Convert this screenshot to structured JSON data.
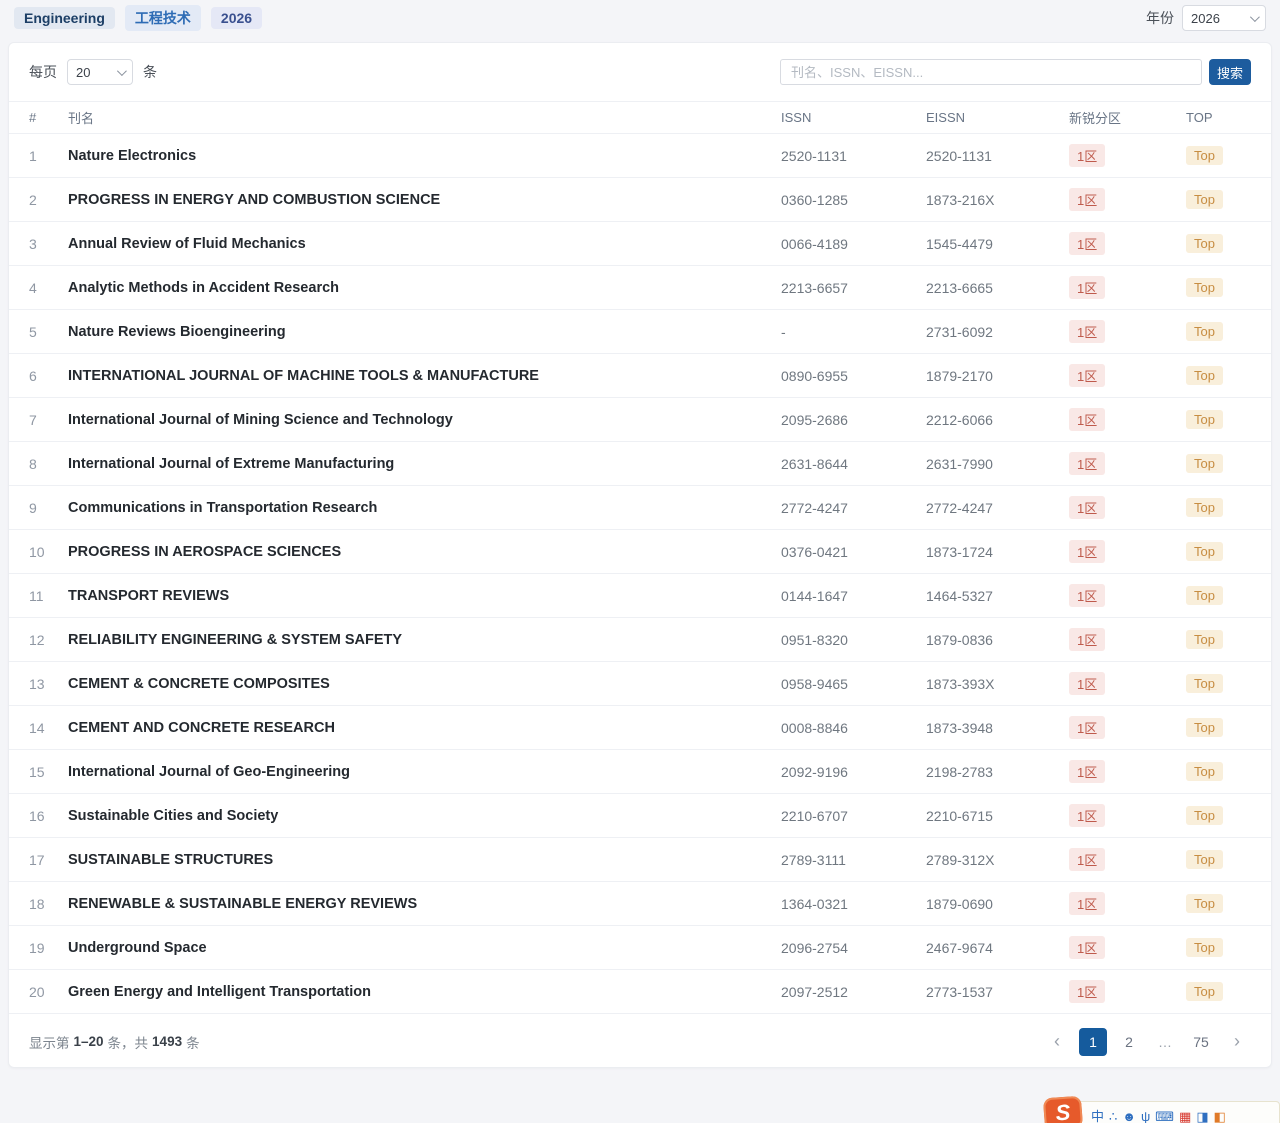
{
  "topbar": {
    "tags": [
      {
        "label": "Engineering"
      },
      {
        "label": "工程技术"
      },
      {
        "label": "2026"
      }
    ],
    "year_label": "年份",
    "year_value": "2026"
  },
  "toolbar": {
    "per_page_prefix": "每页",
    "per_page_value": "20",
    "per_page_suffix": "条",
    "search_placeholder": "刊名、ISSN、EISSN...",
    "search_button": "搜索"
  },
  "table": {
    "columns": {
      "num": "#",
      "name": "刊名",
      "issn": "ISSN",
      "eissn": "EISSN",
      "zone": "新锐分区",
      "top": "TOP"
    },
    "rows": [
      {
        "num": "1",
        "name": "Nature Electronics",
        "issn": "2520-1131",
        "eissn": "2520-1131",
        "zone": "1区",
        "top": "Top"
      },
      {
        "num": "2",
        "name": "PROGRESS IN ENERGY AND COMBUSTION SCIENCE",
        "issn": "0360-1285",
        "eissn": "1873-216X",
        "zone": "1区",
        "top": "Top"
      },
      {
        "num": "3",
        "name": "Annual Review of Fluid Mechanics",
        "issn": "0066-4189",
        "eissn": "1545-4479",
        "zone": "1区",
        "top": "Top"
      },
      {
        "num": "4",
        "name": "Analytic Methods in Accident Research",
        "issn": "2213-6657",
        "eissn": "2213-6665",
        "zone": "1区",
        "top": "Top"
      },
      {
        "num": "5",
        "name": "Nature Reviews Bioengineering",
        "issn": "-",
        "eissn": "2731-6092",
        "zone": "1区",
        "top": "Top"
      },
      {
        "num": "6",
        "name": "INTERNATIONAL JOURNAL OF MACHINE TOOLS & MANUFACTURE",
        "issn": "0890-6955",
        "eissn": "1879-2170",
        "zone": "1区",
        "top": "Top"
      },
      {
        "num": "7",
        "name": "International Journal of Mining Science and Technology",
        "issn": "2095-2686",
        "eissn": "2212-6066",
        "zone": "1区",
        "top": "Top"
      },
      {
        "num": "8",
        "name": "International Journal of Extreme Manufacturing",
        "issn": "2631-8644",
        "eissn": "2631-7990",
        "zone": "1区",
        "top": "Top"
      },
      {
        "num": "9",
        "name": "Communications in Transportation Research",
        "issn": "2772-4247",
        "eissn": "2772-4247",
        "zone": "1区",
        "top": "Top"
      },
      {
        "num": "10",
        "name": "PROGRESS IN AEROSPACE SCIENCES",
        "issn": "0376-0421",
        "eissn": "1873-1724",
        "zone": "1区",
        "top": "Top"
      },
      {
        "num": "11",
        "name": "TRANSPORT REVIEWS",
        "issn": "0144-1647",
        "eissn": "1464-5327",
        "zone": "1区",
        "top": "Top"
      },
      {
        "num": "12",
        "name": "RELIABILITY ENGINEERING & SYSTEM SAFETY",
        "issn": "0951-8320",
        "eissn": "1879-0836",
        "zone": "1区",
        "top": "Top"
      },
      {
        "num": "13",
        "name": "CEMENT & CONCRETE COMPOSITES",
        "issn": "0958-9465",
        "eissn": "1873-393X",
        "zone": "1区",
        "top": "Top"
      },
      {
        "num": "14",
        "name": "CEMENT AND CONCRETE RESEARCH",
        "issn": "0008-8846",
        "eissn": "1873-3948",
        "zone": "1区",
        "top": "Top"
      },
      {
        "num": "15",
        "name": "International Journal of Geo-Engineering",
        "issn": "2092-9196",
        "eissn": "2198-2783",
        "zone": "1区",
        "top": "Top"
      },
      {
        "num": "16",
        "name": "Sustainable Cities and Society",
        "issn": "2210-6707",
        "eissn": "2210-6715",
        "zone": "1区",
        "top": "Top"
      },
      {
        "num": "17",
        "name": "SUSTAINABLE STRUCTURES",
        "issn": "2789-3111",
        "eissn": "2789-312X",
        "zone": "1区",
        "top": "Top"
      },
      {
        "num": "18",
        "name": "RENEWABLE & SUSTAINABLE ENERGY REVIEWS",
        "issn": "1364-0321",
        "eissn": "1879-0690",
        "zone": "1区",
        "top": "Top"
      },
      {
        "num": "19",
        "name": "Underground Space",
        "issn": "2096-2754",
        "eissn": "2467-9674",
        "zone": "1区",
        "top": "Top"
      },
      {
        "num": "20",
        "name": "Green Energy and Intelligent Transportation",
        "issn": "2097-2512",
        "eissn": "2773-1537",
        "zone": "1区",
        "top": "Top"
      }
    ]
  },
  "theme": {
    "accent_blue": "#1d5c9e",
    "zone_badge_bg": "#f9e8e6",
    "zone_badge_color": "#bf5b4d",
    "top_badge_bg": "#f9efdb",
    "top_badge_color": "#c78d42"
  },
  "footer": {
    "showing_prefix": "显示第",
    "showing_range": "1–20",
    "showing_mid": "条，共",
    "showing_total": "1493",
    "showing_suffix": "条",
    "pagination": {
      "prev": "‹",
      "next": "›",
      "pages": [
        {
          "label": "1",
          "active": true,
          "ellipsis": false
        },
        {
          "label": "2",
          "active": false,
          "ellipsis": false
        },
        {
          "label": "…",
          "active": false,
          "ellipsis": true
        },
        {
          "label": "75",
          "active": false,
          "ellipsis": false
        }
      ]
    }
  },
  "ime_bar": {
    "logo": "S",
    "icons": [
      {
        "name": "chinese-mode-icon",
        "glyph": "中",
        "color": "#2f6fc0"
      },
      {
        "name": "symbols-icon",
        "glyph": "∴",
        "color": "#2f6fc0"
      },
      {
        "name": "emoji-icon",
        "glyph": "☻",
        "color": "#2f6fc0"
      },
      {
        "name": "mic-icon",
        "glyph": "ψ",
        "color": "#2f6fc0"
      },
      {
        "name": "keyboard-icon",
        "glyph": "⌨",
        "color": "#2f6fc0"
      },
      {
        "name": "skin-icon",
        "glyph": "▦",
        "color": "#d6352b"
      },
      {
        "name": "plugin-icon",
        "glyph": "◨",
        "color": "#2f6fc0"
      },
      {
        "name": "toolbox-icon",
        "glyph": "◧",
        "color": "#e07a28"
      }
    ]
  }
}
